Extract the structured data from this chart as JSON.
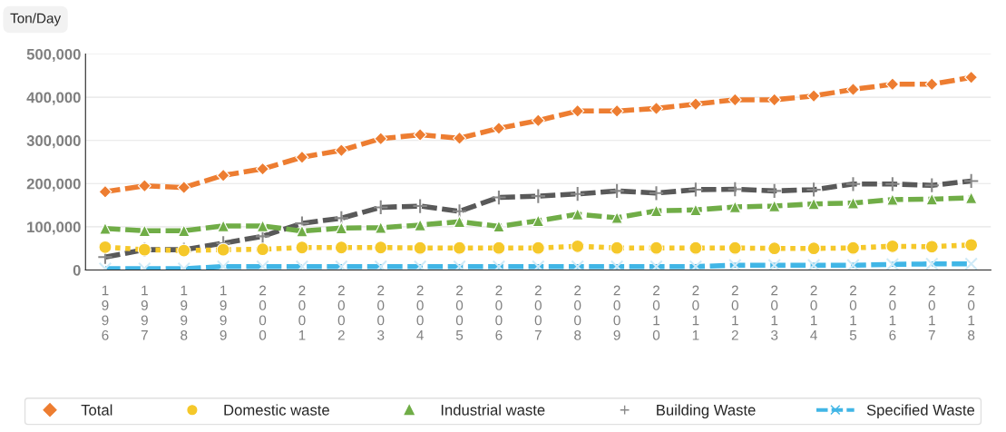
{
  "chart_data": {
    "type": "line",
    "ylabel": "Ton/Day",
    "categories": [
      "1996",
      "1997",
      "1998",
      "1999",
      "2000",
      "2001",
      "2002",
      "2003",
      "2004",
      "2005",
      "2006",
      "2007",
      "2008",
      "2009",
      "2010",
      "2011",
      "2012",
      "2013",
      "2014",
      "2015",
      "2016",
      "2017",
      "2018"
    ],
    "series": [
      {
        "name": "Total",
        "color": "#ed7d31",
        "marker": "diamond",
        "line_style": "dashed",
        "values": [
          181000,
          195000,
          191000,
          219000,
          234000,
          261000,
          277000,
          304000,
          313000,
          305000,
          328000,
          346000,
          368000,
          368000,
          374000,
          384000,
          394000,
          394000,
          403000,
          418000,
          430000,
          430000,
          446000
        ]
      },
      {
        "name": "Domestic waste",
        "color": "#f5c82a",
        "marker": "circle",
        "line_style": "dotted",
        "values": [
          53000,
          47000,
          45000,
          47000,
          48000,
          52000,
          52000,
          52000,
          51000,
          51000,
          51000,
          51000,
          55000,
          51000,
          51000,
          51000,
          51000,
          50000,
          50000,
          51000,
          55000,
          54000,
          58000
        ]
      },
      {
        "name": "Industrial waste",
        "color": "#70ad47",
        "marker": "triangle",
        "line_style": "dashed",
        "values": [
          96000,
          91000,
          91000,
          102000,
          102000,
          90000,
          97000,
          98000,
          104000,
          112000,
          101000,
          114000,
          129000,
          121000,
          137000,
          139000,
          146000,
          148000,
          153000,
          155000,
          163000,
          164000,
          167000
        ]
      },
      {
        "name": "Building Waste",
        "color": "#595959",
        "marker": "cross",
        "line_style": "dashed",
        "values": [
          30000,
          47000,
          47000,
          62000,
          78000,
          108000,
          120000,
          145000,
          148000,
          136000,
          168000,
          171000,
          176000,
          183000,
          178000,
          186000,
          187000,
          183000,
          186000,
          199000,
          199000,
          196000,
          206000
        ]
      },
      {
        "name": "Specified Waste",
        "color": "#41b6e6",
        "marker": "x",
        "line_style": "dashed",
        "values": [
          3000,
          3000,
          3000,
          8000,
          8000,
          8000,
          8000,
          8000,
          8000,
          8000,
          8000,
          8000,
          8000,
          8000,
          8000,
          8000,
          11000,
          11000,
          11000,
          11000,
          13000,
          14000,
          14000
        ]
      }
    ],
    "ylim": [
      0,
      500000
    ],
    "yticks": [
      0,
      {
        "value": 100000,
        "label": "100,000"
      },
      {
        "value": 200000,
        "label": "200,000"
      },
      {
        "value": 300000,
        "label": "300,000"
      },
      {
        "value": 400000,
        "label": "400,000"
      },
      {
        "value": 500000,
        "label": "500,000"
      }
    ],
    "grid": "y",
    "legend": "bottom"
  }
}
